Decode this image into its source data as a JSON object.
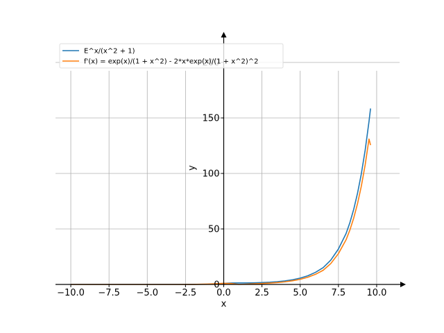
{
  "chart_data": {
    "type": "line",
    "title": "",
    "xlabel": "x",
    "ylabel": "y",
    "xlim": [
      -11,
      11.5
    ],
    "ylim": [
      0,
      220
    ],
    "xticks": [
      -10,
      -7.5,
      -5,
      -2.5,
      0,
      2.5,
      5,
      7.5,
      10
    ],
    "xtick_labels": [
      "−10.0",
      "−7.5",
      "−5.0",
      "−2.5",
      "0.0",
      "2.5",
      "5.0",
      "7.5",
      "10.0"
    ],
    "yticks": [
      0,
      50,
      100,
      150,
      200
    ],
    "ytick_labels": [
      "0",
      "50",
      "100",
      "150",
      "200"
    ],
    "grid": true,
    "legend_position": "top-left",
    "x_range": [
      -10,
      9.6
    ],
    "series": [
      {
        "name": "E^x/(x^2 + 1)",
        "color": "#1f77b4",
        "x": [
          -10,
          -9,
          -8,
          -7,
          -6,
          -5,
          -4,
          -3,
          -2,
          -1,
          0,
          0.5,
          1,
          1.5,
          2,
          2.5,
          3,
          3.5,
          4,
          4.5,
          5,
          5.5,
          6,
          6.5,
          7,
          7.5,
          8,
          8.25,
          8.5,
          8.75,
          9,
          9.25,
          9.5,
          9.6
        ],
        "y": [
          4.5e-06,
          1.52e-05,
          5.2e-06,
          1.83e-05,
          6.7e-05,
          0.000259,
          0.00108,
          0.00498,
          0.0271,
          0.184,
          1.0,
          1.319,
          1.359,
          1.379,
          1.478,
          1.68,
          2.009,
          2.5,
          3.212,
          4.22,
          5.708,
          7.836,
          10.9,
          15.08,
          21.93,
          31.96,
          45.86,
          55.73,
          67.7,
          82.21,
          99.81,
          121.1,
          146.9,
          158.5
        ]
      },
      {
        "name": "f'(x) = exp(x)/(1 + x^2) - 2*x*exp(x)/(1 + x^2)^2",
        "color": "#ff7f0e",
        "x": [
          -10,
          -9,
          -8,
          -7,
          -6,
          -5,
          -4,
          -3,
          -2,
          -1,
          0,
          0.5,
          1,
          1.5,
          2,
          2.5,
          3,
          3.5,
          4,
          4.5,
          5,
          5.5,
          6,
          6.5,
          7,
          7.5,
          8,
          8.25,
          8.5,
          8.75,
          9,
          9.25,
          9.5,
          9.6
        ],
        "y": [
          5.4e-06,
          1.82e-05,
          6.2e-06,
          2.19e-05,
          8.01e-05,
          0.000314,
          0.00133,
          0.00647,
          0.0379,
          0.368,
          1.0,
          0.791,
          0.0,
          0.318,
          0.591,
          0.84,
          1.205,
          1.688,
          2.343,
          3.316,
          4.611,
          6.467,
          9.122,
          12.74,
          18.78,
          27.78,
          40.21,
          49.06,
          59.79,
          72.83,
          88.67,
          107.8,
          131.0,
          125.5
        ]
      }
    ]
  }
}
